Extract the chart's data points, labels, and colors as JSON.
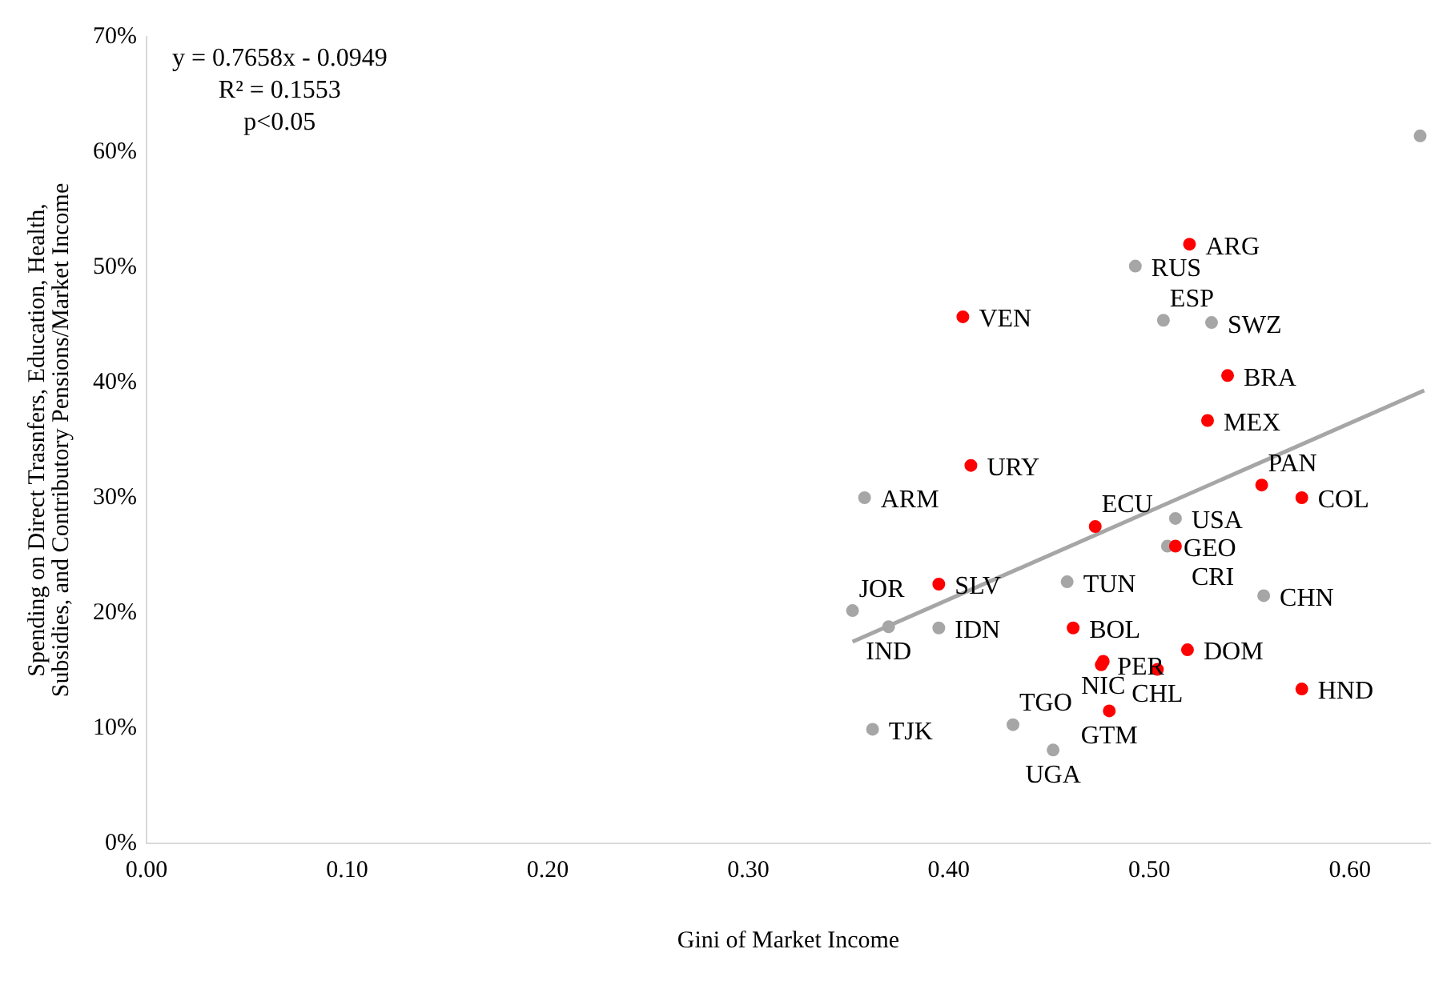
{
  "chart_data": {
    "type": "scatter",
    "xlabel": "Gini of Market Income",
    "ylabel": "Spending on Direct Trasnfers, Education, Health, Subsidies, and Contributory Pensions/Market Income",
    "xlim": [
      0,
      0.64
    ],
    "xticks": [
      {
        "value": 0,
        "label": "0.00"
      },
      {
        "value": 0.1,
        "label": "0.10"
      },
      {
        "value": 0.2,
        "label": "0.20"
      },
      {
        "value": 0.3,
        "label": "0.30"
      },
      {
        "value": 0.4,
        "label": "0.40"
      },
      {
        "value": 0.5,
        "label": "0.50"
      },
      {
        "value": 0.6,
        "label": "0.60"
      }
    ],
    "ylim": [
      0,
      70
    ],
    "yticks": [
      {
        "value": 0,
        "label": "0%"
      },
      {
        "value": 10,
        "label": "10%"
      },
      {
        "value": 20,
        "label": "20%"
      },
      {
        "value": 30,
        "label": "30%"
      },
      {
        "value": 40,
        "label": "40%"
      },
      {
        "value": 50,
        "label": "50%"
      },
      {
        "value": 60,
        "label": "60%"
      },
      {
        "value": 70,
        "label": "70%"
      }
    ],
    "grid": false,
    "legend": false,
    "marker": "circle",
    "series": [
      {
        "color": "#ff0000",
        "x": [
          0.52,
          0.407,
          0.539,
          0.529,
          0.411,
          0.556,
          0.576,
          0.473,
          0.513,
          0.395,
          0.462,
          0.519,
          0.476,
          0.477,
          0.504,
          0.576,
          0.48
        ],
        "values": [
          52,
          45.7,
          40.6,
          36.7,
          32.8,
          31.1,
          30,
          27.5,
          25.8,
          22.5,
          18.7,
          16.8,
          15.5,
          15.8,
          15.1,
          13.4,
          11.5
        ]
      },
      {
        "color": "#a6a6a6",
        "x": [
          0.635,
          0.493,
          0.507,
          0.531,
          0.358,
          0.513,
          0.509,
          0.352,
          0.459,
          0.557,
          0.37,
          0.395,
          0.362,
          0.432,
          0.452
        ],
        "values": [
          61.4,
          50.1,
          45.4,
          45.2,
          30,
          28.2,
          25.8,
          20.2,
          22.7,
          21.5,
          18.8,
          18.7,
          9.9,
          10.3,
          8.1
        ]
      },
      {
        "type": "line",
        "marker": "none",
        "color": "#a6a6a6",
        "x": [
          0.352,
          0.637
        ],
        "values": [
          17.5,
          39.3
        ]
      }
    ],
    "annotations": [
      "y = 0.7658x - 0.0949",
      "R² = 0.1553",
      "p<0.05",
      {
        "text": "ARG",
        "x": 0.52,
        "y": 52
      },
      {
        "text": "RUS",
        "x": 0.493,
        "y": 50.1
      },
      {
        "text": "VEN",
        "x": 0.407,
        "y": 45.7
      },
      {
        "text": "ESP",
        "x": 0.507,
        "y": 45.4
      },
      {
        "text": "SWZ",
        "x": 0.531,
        "y": 45.2
      },
      {
        "text": "BRA",
        "x": 0.539,
        "y": 40.6
      },
      {
        "text": "MEX",
        "x": 0.529,
        "y": 36.7
      },
      {
        "text": "URY",
        "x": 0.411,
        "y": 32.8
      },
      {
        "text": "ARM",
        "x": 0.358,
        "y": 30
      },
      {
        "text": "PAN",
        "x": 0.556,
        "y": 31.1
      },
      {
        "text": "COL",
        "x": 0.576,
        "y": 30
      },
      {
        "text": "USA",
        "x": 0.513,
        "y": 28.2
      },
      {
        "text": "ECU",
        "x": 0.473,
        "y": 27.5
      },
      {
        "text": "GEO",
        "x": 0.509,
        "y": 25.8
      },
      {
        "text": "CRI",
        "x": 0.513,
        "y": 25.8
      },
      {
        "text": "JOR",
        "x": 0.352,
        "y": 20.2
      },
      {
        "text": "SLV",
        "x": 0.395,
        "y": 22.5
      },
      {
        "text": "TUN",
        "x": 0.459,
        "y": 22.7
      },
      {
        "text": "CHN",
        "x": 0.557,
        "y": 21.5
      },
      {
        "text": "IDN",
        "x": 0.395,
        "y": 18.7
      },
      {
        "text": "IND",
        "x": 0.37,
        "y": 18.8
      },
      {
        "text": "BOL",
        "x": 0.462,
        "y": 18.7
      },
      {
        "text": "DOM",
        "x": 0.519,
        "y": 16.8
      },
      {
        "text": "NIC",
        "x": 0.477,
        "y": 15.8
      },
      {
        "text": "PER",
        "x": 0.476,
        "y": 15.5
      },
      {
        "text": "CHL",
        "x": 0.504,
        "y": 15.1
      },
      {
        "text": "HND",
        "x": 0.576,
        "y": 13.4
      },
      {
        "text": "GTM",
        "x": 0.48,
        "y": 11.5
      },
      {
        "text": "TJK",
        "x": 0.362,
        "y": 9.9
      },
      {
        "text": "TGO",
        "x": 0.432,
        "y": 10.3
      },
      {
        "text": "UGA",
        "x": 0.452,
        "y": 8.1
      }
    ]
  }
}
